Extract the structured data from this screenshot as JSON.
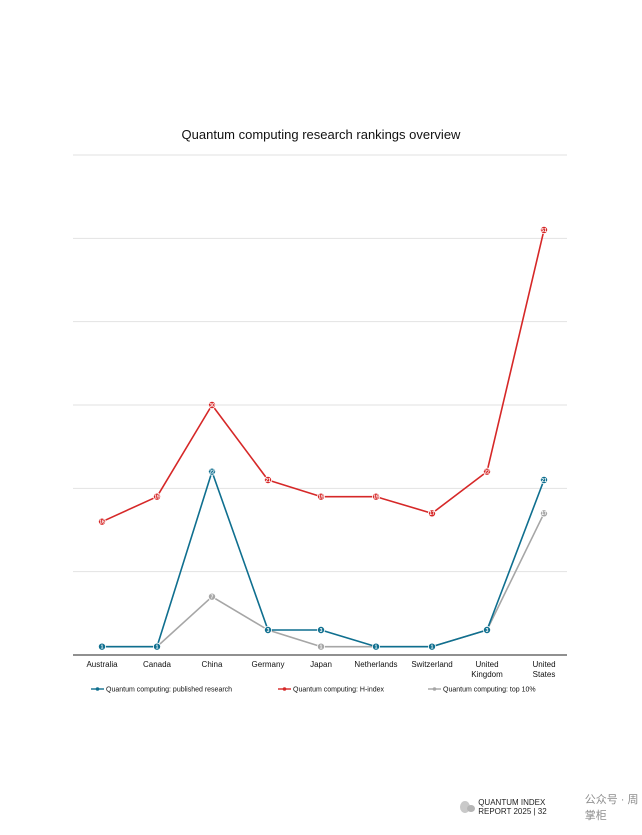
{
  "chart_data": {
    "type": "line",
    "title": "Quantum computing research rankings overview",
    "categories": [
      "Australia",
      "Canada",
      "China",
      "Germany",
      "Japan",
      "Netherlands",
      "Switzerland",
      "United Kingdom",
      "United States"
    ],
    "category_lines": [
      [
        "Australia"
      ],
      [
        "Canada"
      ],
      [
        "China"
      ],
      [
        "Germany"
      ],
      [
        "Japan"
      ],
      [
        "Netherlands"
      ],
      [
        "Switzerland"
      ],
      [
        "United",
        "Kingdom"
      ],
      [
        "United",
        "States"
      ]
    ],
    "ylim": [
      0,
      60
    ],
    "gridlines": [
      10,
      20,
      30,
      40,
      50,
      60
    ],
    "series": [
      {
        "name": "Quantum computing: published research",
        "color": "#0f6f8f",
        "values": [
          1,
          1,
          22,
          3,
          3,
          1,
          1,
          3,
          21
        ]
      },
      {
        "name": "Quantum computing: H-index",
        "color": "#d62828",
        "values": [
          16,
          19,
          30,
          21,
          19,
          19,
          17,
          22,
          51
        ]
      },
      {
        "name": "Quantum computing: top 10%",
        "color": "#a6a6a6",
        "values": [
          1,
          1,
          7,
          3,
          1,
          1,
          1,
          3,
          17
        ]
      }
    ]
  },
  "footer": {
    "report": "QUANTUM INDEX REPORT 2025 | 32",
    "watermark": "公众号 · 周掌柜"
  }
}
